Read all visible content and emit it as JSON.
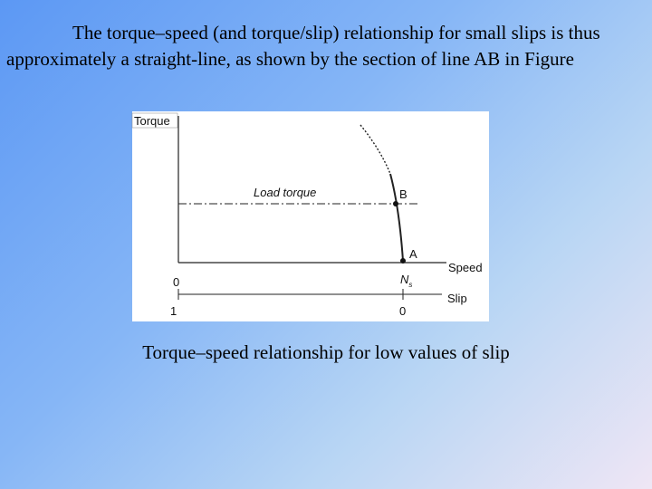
{
  "paragraph": "The torque–speed (and torque/slip) relationship for small slips is thus approximately a straight-line, as shown by the section of line AB in Figure",
  "figure": {
    "torque_axis": "Torque",
    "load_torque": "Load torque",
    "point_b": "B",
    "point_a": "A",
    "speed_zero": "0",
    "speed_axis": "Speed",
    "sync_speed": "N",
    "sync_speed_sub": "s",
    "slip_one": "1",
    "slip_zero": "0",
    "slip_axis": "Slip"
  },
  "caption": "Torque–speed relationship for low values of slip"
}
